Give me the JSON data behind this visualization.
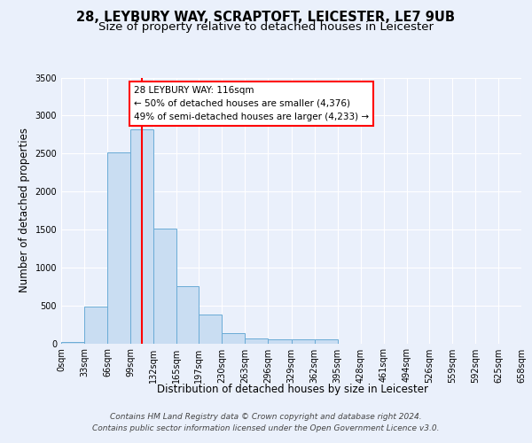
{
  "title_line1": "28, LEYBURY WAY, SCRAPTOFT, LEICESTER, LE7 9UB",
  "title_line2": "Size of property relative to detached houses in Leicester",
  "xlabel": "Distribution of detached houses by size in Leicester",
  "ylabel": "Number of detached properties",
  "bar_color": "#c9ddf2",
  "bar_edge_color": "#6aabd6",
  "bin_edges": [
    0,
    33,
    66,
    99,
    132,
    165,
    197,
    230,
    263,
    296,
    329,
    362,
    395,
    428,
    461,
    494,
    526,
    559,
    592,
    625,
    658
  ],
  "bar_values": [
    20,
    480,
    2510,
    2820,
    1510,
    750,
    380,
    140,
    70,
    55,
    50,
    50,
    0,
    0,
    0,
    0,
    0,
    0,
    0,
    0
  ],
  "tick_labels": [
    "0sqm",
    "33sqm",
    "66sqm",
    "99sqm",
    "132sqm",
    "165sqm",
    "197sqm",
    "230sqm",
    "263sqm",
    "296sqm",
    "329sqm",
    "362sqm",
    "395sqm",
    "428sqm",
    "461sqm",
    "494sqm",
    "526sqm",
    "559sqm",
    "592sqm",
    "625sqm",
    "658sqm"
  ],
  "red_line_x": 116,
  "annotation_text": "28 LEYBURY WAY: 116sqm\n← 50% of detached houses are smaller (4,376)\n49% of semi-detached houses are larger (4,233) →",
  "ylim": [
    0,
    3500
  ],
  "yticks": [
    0,
    500,
    1000,
    1500,
    2000,
    2500,
    3000,
    3500
  ],
  "footer_line1": "Contains HM Land Registry data © Crown copyright and database right 2024.",
  "footer_line2": "Contains public sector information licensed under the Open Government Licence v3.0.",
  "background_color": "#eaf0fb",
  "plot_bg_color": "#eaf0fb",
  "grid_color": "#ffffff",
  "title_fontsize": 10.5,
  "subtitle_fontsize": 9.5,
  "axis_label_fontsize": 8.5,
  "tick_fontsize": 7,
  "footer_fontsize": 6.5,
  "annotation_fontsize": 7.5
}
